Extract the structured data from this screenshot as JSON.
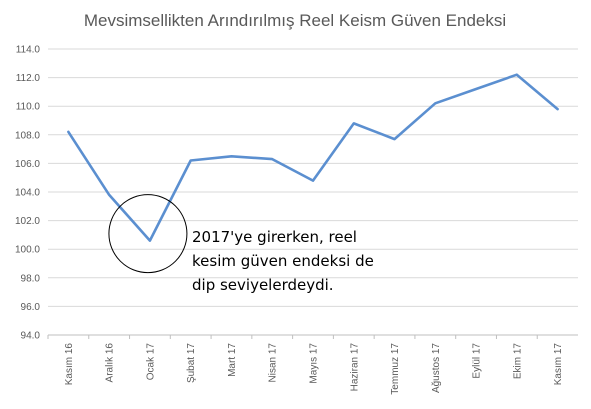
{
  "chart_data": {
    "type": "line",
    "title": "Mevsimsellikten Arındırılmış Reel Keism Güven Endeksi",
    "xlabel": "",
    "ylabel": "",
    "categories": [
      "Kasım 16",
      "Aralık 16",
      "Ocak 17",
      "Şubat 17",
      "Mart 17",
      "Nisan 17",
      "Mayıs 17",
      "Haziran 17",
      "Temmuz 17",
      "Ağustos 17",
      "Eylül 17",
      "Ekim 17",
      "Kasım 17"
    ],
    "series": [
      {
        "values": [
          108.2,
          103.8,
          100.6,
          106.2,
          106.5,
          106.3,
          104.8,
          108.8,
          107.7,
          110.2,
          111.2,
          112.2,
          109.8
        ]
      }
    ],
    "ylim": [
      94.0,
      114.0
    ],
    "yticks": [
      "94.0",
      "96.0",
      "98.0",
      "100.0",
      "102.0",
      "104.0",
      "106.0",
      "108.0",
      "110.0",
      "112.0",
      "114.0"
    ],
    "grid": true,
    "legend": "none",
    "annotation": {
      "lines": [
        "2017'ye girerken, reel",
        "kesim güven endeksi de",
        "dip seviyelerdeydi."
      ],
      "highlight_category": "Ocak 17"
    },
    "colors": {
      "series": "#5b8fd0",
      "grid": "#d9d9d9",
      "text": "#595959"
    }
  }
}
